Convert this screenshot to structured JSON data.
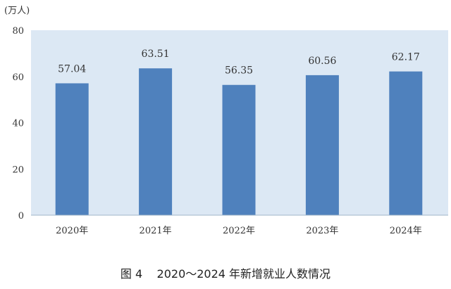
{
  "chart_data": {
    "type": "bar",
    "ylabel": "(万人)",
    "ylim": [
      0,
      80
    ],
    "yticks": [
      0,
      20,
      40,
      60,
      80
    ],
    "categories": [
      "2020年",
      "2021年",
      "2022年",
      "2023年",
      "2024年"
    ],
    "values": [
      57.04,
      63.51,
      56.35,
      60.56,
      62.17
    ],
    "value_labels": [
      "57.04",
      "63.51",
      "56.35",
      "60.56",
      "62.17"
    ],
    "bar_color": "#4f81bd",
    "plot_background": "#dce8f4",
    "grid": false,
    "legend": "none"
  },
  "caption": "图 4    2020～2024 年新增就业人数情况"
}
